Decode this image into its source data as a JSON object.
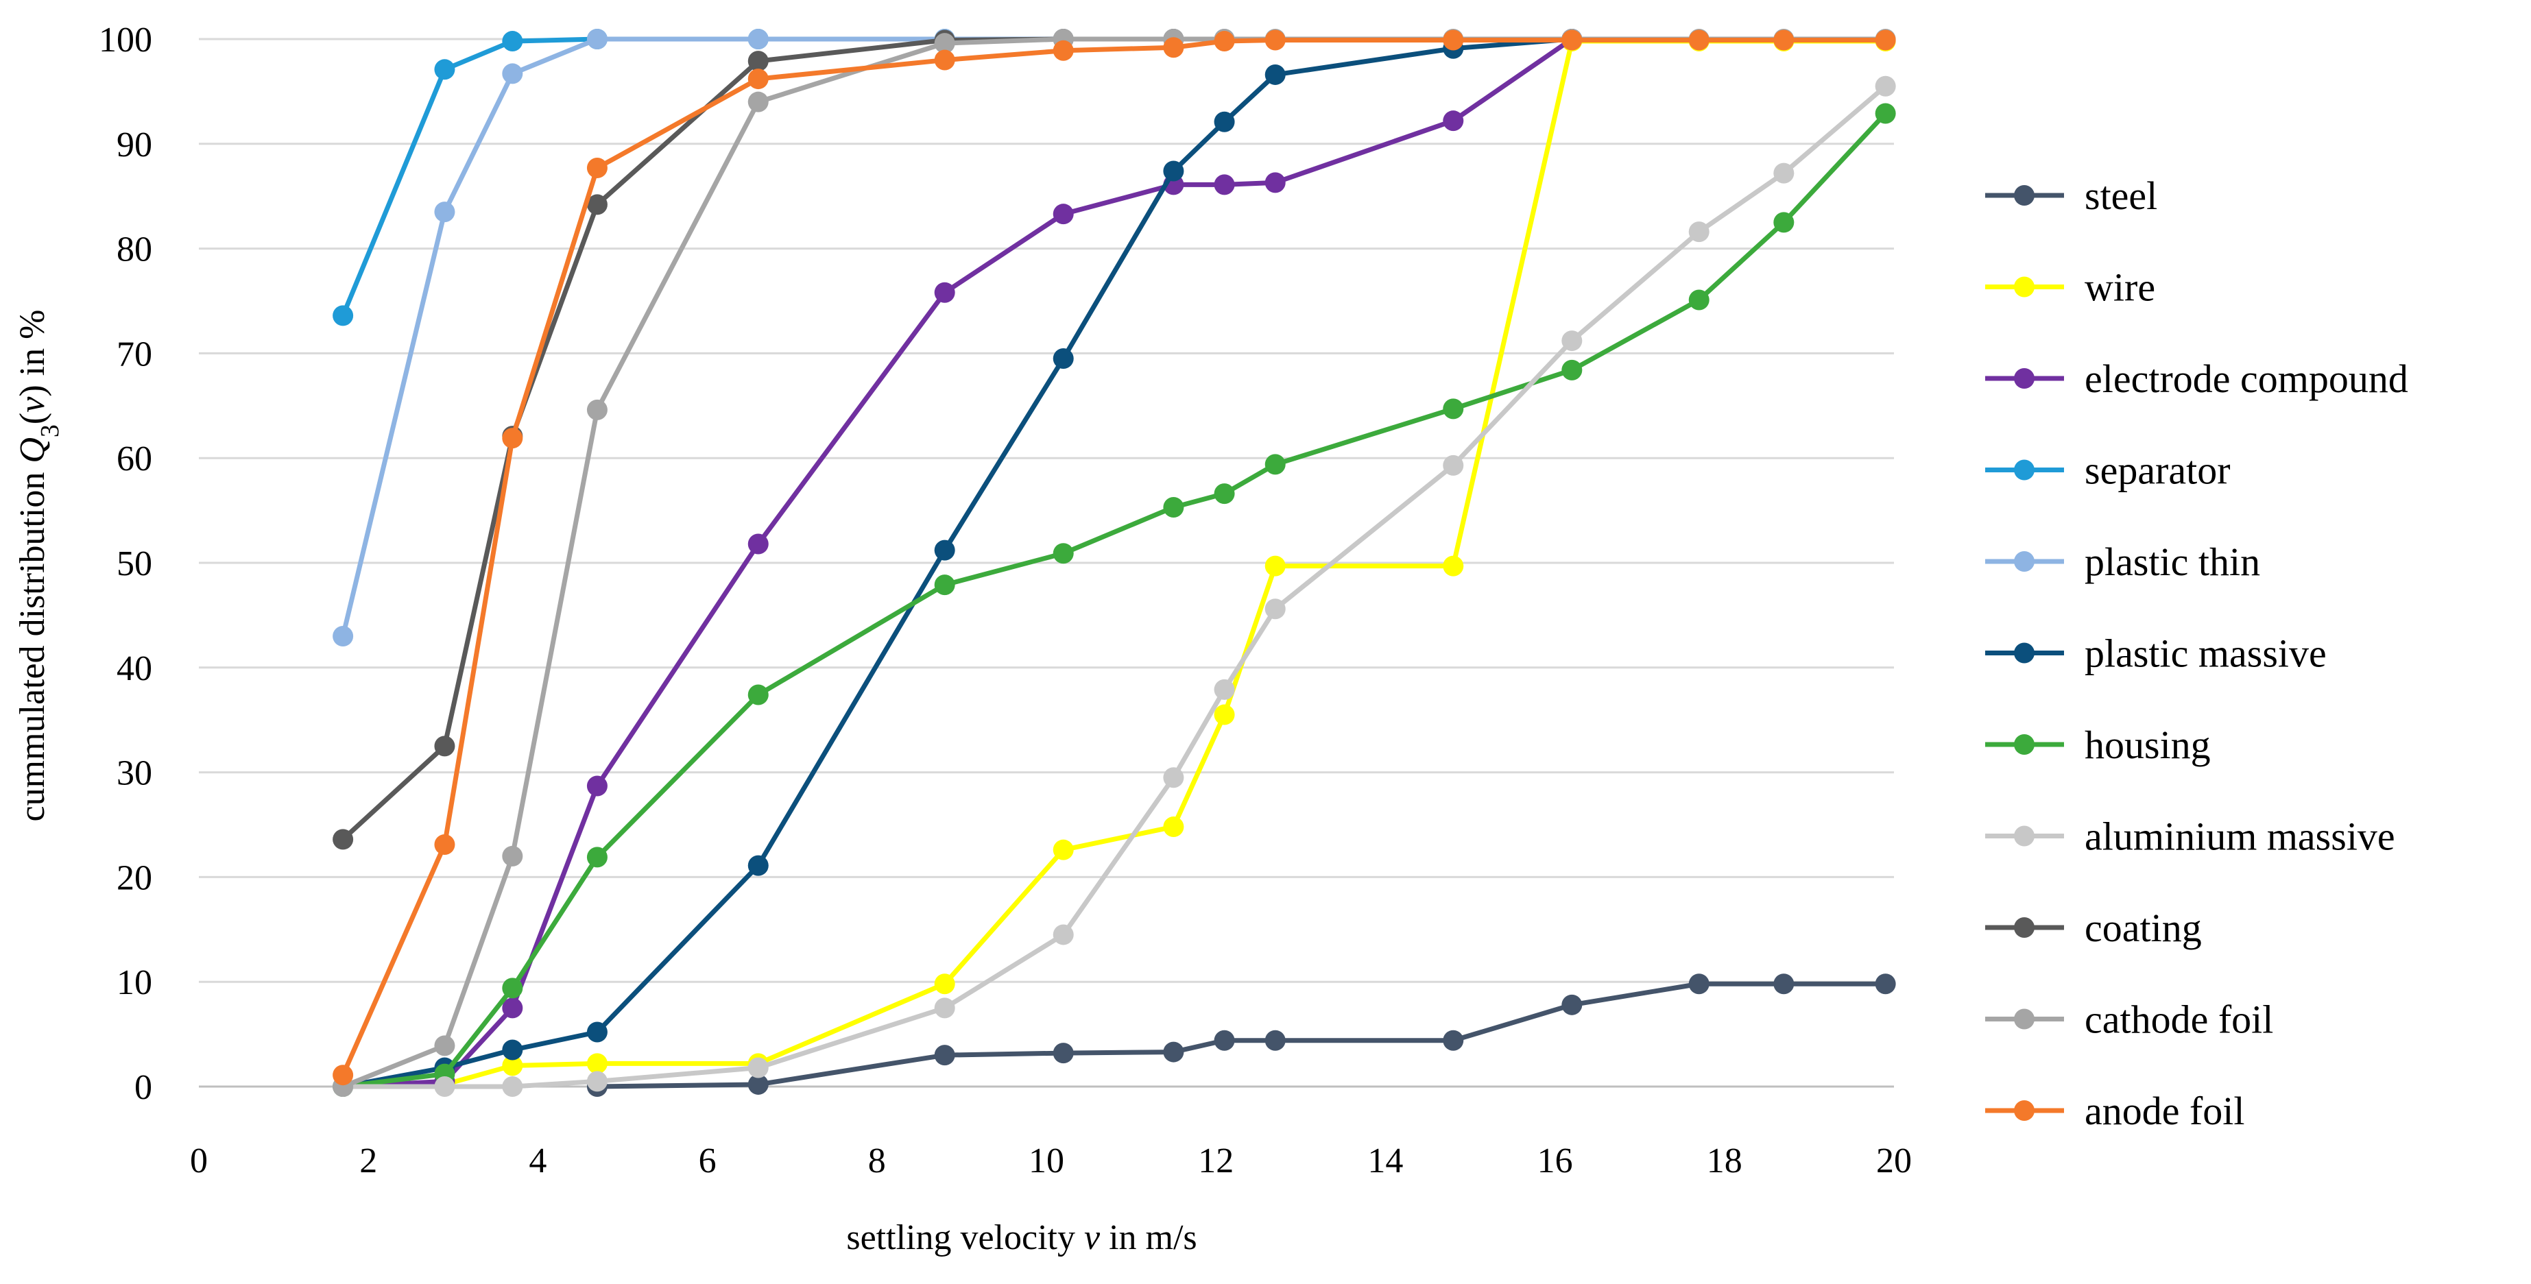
{
  "chart_data": {
    "type": "line",
    "xlabel_parts": [
      "settling velocity ",
      "v",
      " in m/s"
    ],
    "ylabel_parts": [
      "cummulated distribution ",
      "Q",
      "3",
      "(",
      "v",
      ") in %"
    ],
    "xlim": [
      0,
      20
    ],
    "ylim": [
      0,
      100
    ],
    "x_ticks": [
      0,
      2,
      4,
      6,
      8,
      10,
      12,
      14,
      16,
      18,
      20
    ],
    "y_ticks": [
      0,
      10,
      20,
      30,
      40,
      50,
      60,
      70,
      80,
      90,
      100
    ],
    "grid": "horizontal",
    "legend_position": "right",
    "series": [
      {
        "name": "steel",
        "color": "#44546A",
        "points": [
          [
            4.7,
            0
          ],
          [
            6.6,
            0.2
          ],
          [
            8.8,
            3
          ],
          [
            10.2,
            3.2
          ],
          [
            11.5,
            3.3
          ],
          [
            12.1,
            4.4
          ],
          [
            12.7,
            4.4
          ],
          [
            14.8,
            4.4
          ],
          [
            16.2,
            7.8
          ],
          [
            17.7,
            9.8
          ],
          [
            18.7,
            9.8
          ],
          [
            19.9,
            9.8
          ]
        ]
      },
      {
        "name": "wire",
        "color": "#FFFF00",
        "points": [
          [
            1.7,
            0
          ],
          [
            2.9,
            0.2
          ],
          [
            3.7,
            2
          ],
          [
            4.7,
            2.2
          ],
          [
            6.6,
            2.2
          ],
          [
            8.8,
            9.8
          ],
          [
            10.2,
            22.6
          ],
          [
            11.5,
            24.8
          ],
          [
            12.1,
            35.5
          ],
          [
            12.7,
            49.7
          ],
          [
            14.8,
            49.7
          ],
          [
            16.2,
            99.8
          ],
          [
            17.7,
            99.8
          ],
          [
            18.7,
            99.8
          ],
          [
            19.9,
            99.8
          ]
        ]
      },
      {
        "name": "electrode compound",
        "color": "#7030A0",
        "points": [
          [
            1.7,
            0
          ],
          [
            2.9,
            0.5
          ],
          [
            3.7,
            7.5
          ],
          [
            4.7,
            28.7
          ],
          [
            6.6,
            51.8
          ],
          [
            8.8,
            75.8
          ],
          [
            10.2,
            83.3
          ],
          [
            11.5,
            86.1
          ],
          [
            12.1,
            86.1
          ],
          [
            12.7,
            86.3
          ],
          [
            14.8,
            92.2
          ],
          [
            16.2,
            100
          ]
        ]
      },
      {
        "name": "separator",
        "color": "#1F9BD7",
        "points": [
          [
            1.7,
            73.6
          ],
          [
            2.9,
            97.1
          ],
          [
            3.7,
            99.8
          ],
          [
            4.7,
            100
          ],
          [
            6.6,
            100
          ],
          [
            8.8,
            100
          ]
        ]
      },
      {
        "name": "plastic thin",
        "color": "#8EB4E3",
        "points": [
          [
            1.7,
            43
          ],
          [
            2.9,
            83.5
          ],
          [
            3.7,
            96.7
          ],
          [
            4.7,
            100
          ],
          [
            6.6,
            100
          ],
          [
            8.8,
            100
          ],
          [
            10.2,
            100
          ],
          [
            11.5,
            100
          ],
          [
            12.1,
            100
          ]
        ]
      },
      {
        "name": "plastic massive",
        "color": "#0B4F7C",
        "points": [
          [
            1.7,
            0
          ],
          [
            2.9,
            1.8
          ],
          [
            3.7,
            3.5
          ],
          [
            4.7,
            5.2
          ],
          [
            6.6,
            21.1
          ],
          [
            8.8,
            51.2
          ],
          [
            10.2,
            69.5
          ],
          [
            11.5,
            87.4
          ],
          [
            12.1,
            92.1
          ],
          [
            12.7,
            96.6
          ],
          [
            14.8,
            99.1
          ],
          [
            16.2,
            100
          ]
        ]
      },
      {
        "name": "housing",
        "color": "#3CAA3C",
        "points": [
          [
            1.7,
            0
          ],
          [
            2.9,
            1.2
          ],
          [
            3.7,
            9.4
          ],
          [
            4.7,
            21.9
          ],
          [
            6.6,
            37.4
          ],
          [
            8.8,
            47.9
          ],
          [
            10.2,
            50.9
          ],
          [
            11.5,
            55.3
          ],
          [
            12.1,
            56.6
          ],
          [
            12.7,
            59.4
          ],
          [
            14.8,
            64.7
          ],
          [
            16.2,
            68.4
          ],
          [
            17.7,
            75.1
          ],
          [
            18.7,
            82.5
          ],
          [
            19.9,
            92.9
          ]
        ]
      },
      {
        "name": "aluminium massive",
        "color": "#C8C8C8",
        "points": [
          [
            1.7,
            0
          ],
          [
            2.9,
            0
          ],
          [
            3.7,
            0
          ],
          [
            4.7,
            0.5
          ],
          [
            6.6,
            1.8
          ],
          [
            8.8,
            7.5
          ],
          [
            10.2,
            14.5
          ],
          [
            11.5,
            29.5
          ],
          [
            12.1,
            37.9
          ],
          [
            12.7,
            45.6
          ],
          [
            14.8,
            59.3
          ],
          [
            16.2,
            71.2
          ],
          [
            17.7,
            81.6
          ],
          [
            18.7,
            87.2
          ],
          [
            19.9,
            95.5
          ]
        ]
      },
      {
        "name": "coating",
        "color": "#595959",
        "points": [
          [
            1.7,
            23.6
          ],
          [
            2.9,
            32.5
          ],
          [
            3.7,
            62.1
          ],
          [
            4.7,
            84.2
          ],
          [
            6.6,
            97.9
          ],
          [
            8.8,
            99.9
          ],
          [
            10.2,
            100
          ],
          [
            11.5,
            100
          ]
        ]
      },
      {
        "name": "cathode foil",
        "color": "#A5A5A5",
        "points": [
          [
            1.7,
            0
          ],
          [
            2.9,
            3.9
          ],
          [
            3.7,
            22
          ],
          [
            4.7,
            64.6
          ],
          [
            6.6,
            94
          ],
          [
            8.8,
            99.6
          ],
          [
            10.2,
            100
          ],
          [
            11.5,
            100
          ],
          [
            12.1,
            100
          ],
          [
            12.7,
            100
          ],
          [
            14.8,
            100
          ],
          [
            16.2,
            100
          ],
          [
            17.7,
            100
          ],
          [
            18.7,
            100
          ],
          [
            19.9,
            100
          ]
        ]
      },
      {
        "name": "anode foil",
        "color": "#F4792A",
        "points": [
          [
            1.7,
            1.1
          ],
          [
            2.9,
            23.1
          ],
          [
            3.7,
            61.9
          ],
          [
            4.7,
            87.7
          ],
          [
            6.6,
            96.2
          ],
          [
            8.8,
            98
          ],
          [
            10.2,
            98.9
          ],
          [
            11.5,
            99.2
          ],
          [
            12.1,
            99.8
          ],
          [
            12.7,
            99.9
          ],
          [
            14.8,
            99.9
          ],
          [
            16.2,
            99.9
          ],
          [
            17.7,
            99.9
          ],
          [
            18.7,
            99.9
          ],
          [
            19.9,
            99.9
          ]
        ]
      }
    ]
  }
}
